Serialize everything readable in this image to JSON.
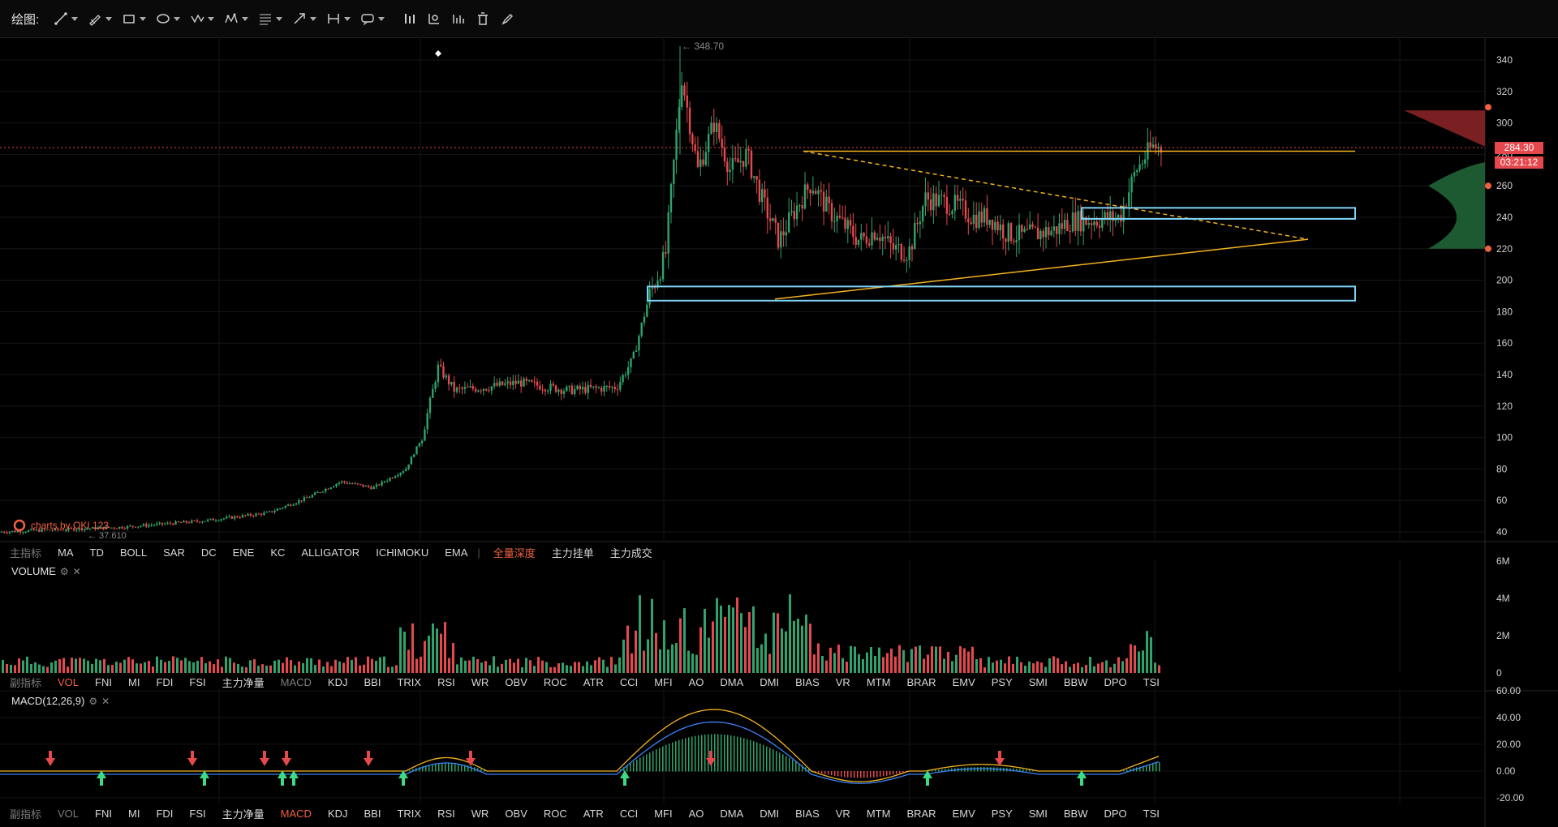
{
  "toolbar": {
    "title": "绘图:",
    "tools": [
      {
        "icon": "line-tool-icon"
      },
      {
        "icon": "pencil-tool-icon"
      },
      {
        "icon": "rectangle-tool-icon"
      },
      {
        "icon": "ellipse-tool-icon"
      },
      {
        "icon": "wave-tool-icon"
      },
      {
        "icon": "pattern-tool-icon"
      },
      {
        "icon": "fib-tool-icon"
      },
      {
        "icon": "arrow-tool-icon"
      },
      {
        "icon": "measure-tool-icon"
      },
      {
        "icon": "comment-tool-icon"
      }
    ],
    "actions": [
      "bars-icon",
      "chart-settings-icon",
      "indicator-icon",
      "delete-icon",
      "brush-icon"
    ]
  },
  "main_indicators": {
    "label": "主指标",
    "items": [
      "MA",
      "TD",
      "BOLL",
      "SAR",
      "DC",
      "ENE",
      "KC",
      "ALLIGATOR",
      "ICHIMOKU",
      "EMA"
    ],
    "extra": [
      "全量深度",
      "主力挂单",
      "主力成交"
    ]
  },
  "sub_indicators_1": {
    "label": "副指标",
    "active": "VOL",
    "items": [
      "VOL",
      "FNI",
      "MI",
      "FDI",
      "FSI",
      "主力净量",
      "MACD",
      "KDJ",
      "BBI",
      "TRIX",
      "RSI",
      "WR",
      "OBV",
      "ROC",
      "ATR",
      "CCI",
      "MFI",
      "AO",
      "DMA",
      "DMI",
      "BIAS",
      "VR",
      "MTM",
      "BRAR",
      "EMV",
      "PSY",
      "SMI",
      "BBW",
      "DPO",
      "TSI"
    ]
  },
  "sub_indicators_2": {
    "label": "副指标",
    "active": "MACD",
    "items": [
      "VOL",
      "FNI",
      "MI",
      "FDI",
      "FSI",
      "主力净量",
      "MACD",
      "KDJ",
      "BBI",
      "TRIX",
      "RSI",
      "WR",
      "OBV",
      "ROC",
      "ATR",
      "CCI",
      "MFI",
      "AO",
      "DMA",
      "DMI",
      "BIAS",
      "VR",
      "MTM",
      "BRAR",
      "EMV",
      "PSY",
      "SMI",
      "BBW",
      "DPO",
      "TSI"
    ]
  },
  "volume_panel": {
    "title": "VOLUME",
    "axis": [
      "6M",
      "4M",
      "2M",
      "0"
    ]
  },
  "macd_panel": {
    "title": "MACD(12,26,9)",
    "axis": [
      "60.00",
      "40.00",
      "20.00",
      "0.00",
      "-20.00"
    ]
  },
  "price_axis": [
    "340",
    "320",
    "300",
    "280",
    "260",
    "240",
    "220",
    "200",
    "180",
    "160",
    "140",
    "120",
    "100",
    "80",
    "60",
    "40"
  ],
  "last_price": "284.30",
  "countdown": "03:21:12",
  "high_label": "348.70",
  "low_label": "37.610",
  "watermark": "charts by OKI 123",
  "colors": {
    "up": "#2fa36b",
    "down": "#e5484d",
    "trend": "#f3b320",
    "box": "#7fd3f7",
    "accent": "#f0623f"
  }
}
